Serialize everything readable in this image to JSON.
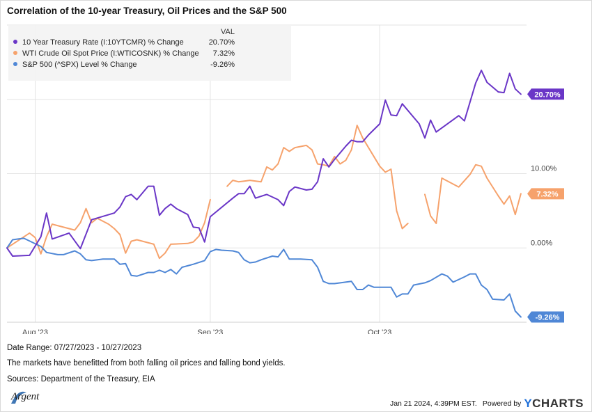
{
  "title": "Correlation of the 10-year Treasury, Oil Prices and the S&P 500",
  "legend": {
    "header": "VAL",
    "entries": [
      {
        "label": "10 Year Treasury Rate (I:10YTCMR) % Change",
        "value": "20.70%",
        "color": "#6a36c7"
      },
      {
        "label": "WTI Crude Oil Spot Price (I:WTICOSNK) % Change",
        "value": "7.32%",
        "color": "#f6a26c"
      },
      {
        "label": "S&P 500 (^SPX) Level % Change",
        "value": "-9.26%",
        "color": "#4f87d6"
      }
    ]
  },
  "chart_data": {
    "type": "line",
    "x_ticks": [
      "Aug '23",
      "Sep '23",
      "Oct '23"
    ],
    "x_tick_days": [
      5,
      36,
      66
    ],
    "x_range_days": [
      0,
      92
    ],
    "y_ticks": [
      "10.00%",
      "0.00%"
    ],
    "y_tick_values": [
      10,
      0
    ],
    "ylim": [
      -10,
      30
    ],
    "grid": true,
    "series": [
      {
        "name": "10 Year Treasury Rate (I:10YTCMR) % Change",
        "color": "#6a36c7",
        "end_label": "20.70%",
        "points": [
          [
            0,
            0
          ],
          [
            1,
            -1.1
          ],
          [
            4,
            -1
          ],
          [
            6,
            1.5
          ],
          [
            7,
            4.7
          ],
          [
            8,
            1.2
          ],
          [
            11,
            2
          ],
          [
            13,
            -0.1
          ],
          [
            15,
            3.8
          ],
          [
            19,
            4.7
          ],
          [
            20,
            5.5
          ],
          [
            21,
            6.9
          ],
          [
            22,
            7.2
          ],
          [
            23,
            6.5
          ],
          [
            25,
            8.3
          ],
          [
            26,
            8.3
          ],
          [
            27,
            4.4
          ],
          [
            28,
            5.3
          ],
          [
            29,
            5.9
          ],
          [
            30,
            5.3
          ],
          [
            32,
            4.5
          ],
          [
            33,
            2.8
          ],
          [
            34,
            2.7
          ],
          [
            35,
            0.8
          ],
          [
            36,
            4.2
          ],
          [
            40,
            6.7
          ],
          [
            41,
            7.3
          ],
          [
            42,
            7.3
          ],
          [
            43,
            8.3
          ],
          [
            44,
            6.7
          ],
          [
            46,
            7.2
          ],
          [
            48,
            6.5
          ],
          [
            49,
            5.7
          ],
          [
            50,
            7.6
          ],
          [
            51,
            8.2
          ],
          [
            53,
            7.8
          ],
          [
            54,
            7.9
          ],
          [
            55,
            8.9
          ],
          [
            56,
            12
          ],
          [
            57,
            10.9
          ],
          [
            58,
            11.9
          ],
          [
            60,
            13.7
          ],
          [
            61,
            14.5
          ],
          [
            62,
            14.3
          ],
          [
            63,
            14.3
          ],
          [
            64,
            15.2
          ],
          [
            66,
            16.7
          ],
          [
            67,
            19.9
          ],
          [
            68,
            17.9
          ],
          [
            69,
            17.8
          ],
          [
            70,
            19.4
          ],
          [
            73,
            16.7
          ],
          [
            74,
            14.8
          ],
          [
            75,
            17.2
          ],
          [
            76,
            15.6
          ],
          [
            80,
            17.8
          ],
          [
            81,
            17.1
          ],
          [
            83,
            22.2
          ],
          [
            84,
            23.9
          ],
          [
            85,
            22.3
          ],
          [
            87,
            21
          ],
          [
            88,
            20.9
          ],
          [
            89,
            23.5
          ],
          [
            90,
            21.4
          ],
          [
            91,
            20.7
          ]
        ]
      },
      {
        "name": "WTI Crude Oil Spot Price (I:WTICOSNK) % Change",
        "color": "#f6a26c",
        "end_label": "7.32%",
        "segments": [
          [
            [
              0,
              0
            ],
            [
              4,
              2
            ],
            [
              5,
              1.4
            ],
            [
              6,
              -0.8
            ],
            [
              7,
              1.5
            ],
            [
              8,
              3.2
            ],
            [
              10,
              2.8
            ],
            [
              12,
              2.4
            ],
            [
              13,
              3.4
            ],
            [
              14,
              5.3
            ],
            [
              15,
              3.4
            ],
            [
              16,
              4
            ],
            [
              18,
              3.2
            ],
            [
              19,
              2.6
            ],
            [
              20,
              1.8
            ],
            [
              21,
              -0.7
            ],
            [
              22,
              0.9
            ],
            [
              23,
              1.1
            ],
            [
              26,
              0.5
            ],
            [
              27,
              -1.4
            ],
            [
              28,
              -0.7
            ],
            [
              29,
              0.5
            ],
            [
              32,
              0.6
            ],
            [
              33,
              0.8
            ],
            [
              34,
              1.6
            ],
            [
              35,
              3.4
            ],
            [
              36,
              6.5
            ]
          ],
          [
            [
              39,
              8.3
            ],
            [
              40,
              9.1
            ],
            [
              41,
              8.9
            ],
            [
              42,
              9
            ],
            [
              43,
              9.1
            ],
            [
              45,
              8.9
            ],
            [
              46,
              10.9
            ],
            [
              47,
              10.5
            ],
            [
              48,
              11.3
            ],
            [
              49,
              13.5
            ],
            [
              50,
              13
            ],
            [
              51,
              13.5
            ],
            [
              53,
              13.8
            ],
            [
              54,
              13.2
            ],
            [
              55,
              11.3
            ],
            [
              56,
              11.2
            ],
            [
              57,
              11
            ],
            [
              58,
              12.3
            ],
            [
              59,
              11.3
            ],
            [
              60,
              11.8
            ],
            [
              61,
              13.2
            ],
            [
              62,
              16.5
            ],
            [
              63,
              14.8
            ],
            [
              66,
              11
            ],
            [
              67,
              10.2
            ],
            [
              68,
              10.6
            ],
            [
              69,
              5
            ],
            [
              70,
              2.6
            ],
            [
              71,
              3.3
            ]
          ],
          [
            [
              74,
              7.2
            ],
            [
              75,
              4.3
            ],
            [
              76,
              3.3
            ],
            [
              77,
              9.4
            ],
            [
              80,
              8.2
            ],
            [
              82,
              9.9
            ],
            [
              83,
              11.2
            ],
            [
              84,
              11
            ],
            [
              85,
              9.4
            ],
            [
              87,
              7
            ],
            [
              88,
              5.9
            ],
            [
              89,
              7
            ],
            [
              90,
              4.5
            ],
            [
              91,
              7.3
            ]
          ]
        ]
      },
      {
        "name": "S&P 500 (^SPX) Level % Change",
        "color": "#4f87d6",
        "end_label": "-9.26%",
        "points": [
          [
            0,
            0
          ],
          [
            1,
            1.1
          ],
          [
            2,
            1.2
          ],
          [
            3,
            1.3
          ],
          [
            6,
            0.2
          ],
          [
            7,
            -0.6
          ],
          [
            9,
            -0.9
          ],
          [
            10,
            -0.9
          ],
          [
            12,
            -0.4
          ],
          [
            13,
            -0.8
          ],
          [
            14,
            -1.6
          ],
          [
            15,
            -1.7
          ],
          [
            17,
            -1.5
          ],
          [
            19,
            -1.5
          ],
          [
            20,
            -2.2
          ],
          [
            21,
            -2.1
          ],
          [
            22,
            -3.7
          ],
          [
            23,
            -3.8
          ],
          [
            25,
            -3.3
          ],
          [
            26,
            -3.3
          ],
          [
            27,
            -3
          ],
          [
            28,
            -3.3
          ],
          [
            29,
            -2.9
          ],
          [
            30,
            -3.5
          ],
          [
            31,
            -2.6
          ],
          [
            32,
            -2.4
          ],
          [
            33,
            -2.2
          ],
          [
            35,
            -1.7
          ],
          [
            36,
            -0.5
          ],
          [
            37,
            -0.2
          ],
          [
            38,
            -0.3
          ],
          [
            40,
            -0.4
          ],
          [
            41,
            -0.6
          ],
          [
            42,
            -1.6
          ],
          [
            43,
            -2
          ],
          [
            44,
            -1.9
          ],
          [
            45,
            -1.6
          ],
          [
            47,
            -1.1
          ],
          [
            48,
            -1.2
          ],
          [
            49,
            -0.2
          ],
          [
            50,
            -1.5
          ],
          [
            52,
            -1.5
          ],
          [
            54,
            -1.6
          ],
          [
            55,
            -2.6
          ],
          [
            56,
            -4.5
          ],
          [
            57,
            -4.8
          ],
          [
            58,
            -4.8
          ],
          [
            61,
            -4.5
          ],
          [
            62,
            -5.6
          ],
          [
            63,
            -5.6
          ],
          [
            64,
            -5
          ],
          [
            65,
            -5.3
          ],
          [
            68,
            -5.3
          ],
          [
            69,
            -6.6
          ],
          [
            70,
            -6.2
          ],
          [
            71,
            -6.2
          ],
          [
            72,
            -5
          ],
          [
            74,
            -4.7
          ],
          [
            75,
            -4.4
          ],
          [
            77,
            -3.5
          ],
          [
            78,
            -3.8
          ],
          [
            79,
            -4.6
          ],
          [
            81,
            -3.9
          ],
          [
            82,
            -3.5
          ],
          [
            83,
            -3.5
          ],
          [
            84,
            -5
          ],
          [
            85,
            -5.6
          ],
          [
            86,
            -6.9
          ],
          [
            88,
            -7
          ],
          [
            89,
            -6.2
          ],
          [
            90,
            -8.5
          ],
          [
            91,
            -9.3
          ]
        ]
      }
    ]
  },
  "footer": {
    "date_range": "Date Range: 07/27/2023 - 10/27/2023",
    "note": "The markets have benefitted from both falling oil prices and falling bond yields.",
    "sources": "Sources: Department of the Treasury, EIA",
    "logo_text": "Argent",
    "timestamp": "Jan 21 2024, 4:39PM EST.",
    "powered_by": "Powered by",
    "brand_y": "Y",
    "brand_rest": "CHARTS"
  }
}
